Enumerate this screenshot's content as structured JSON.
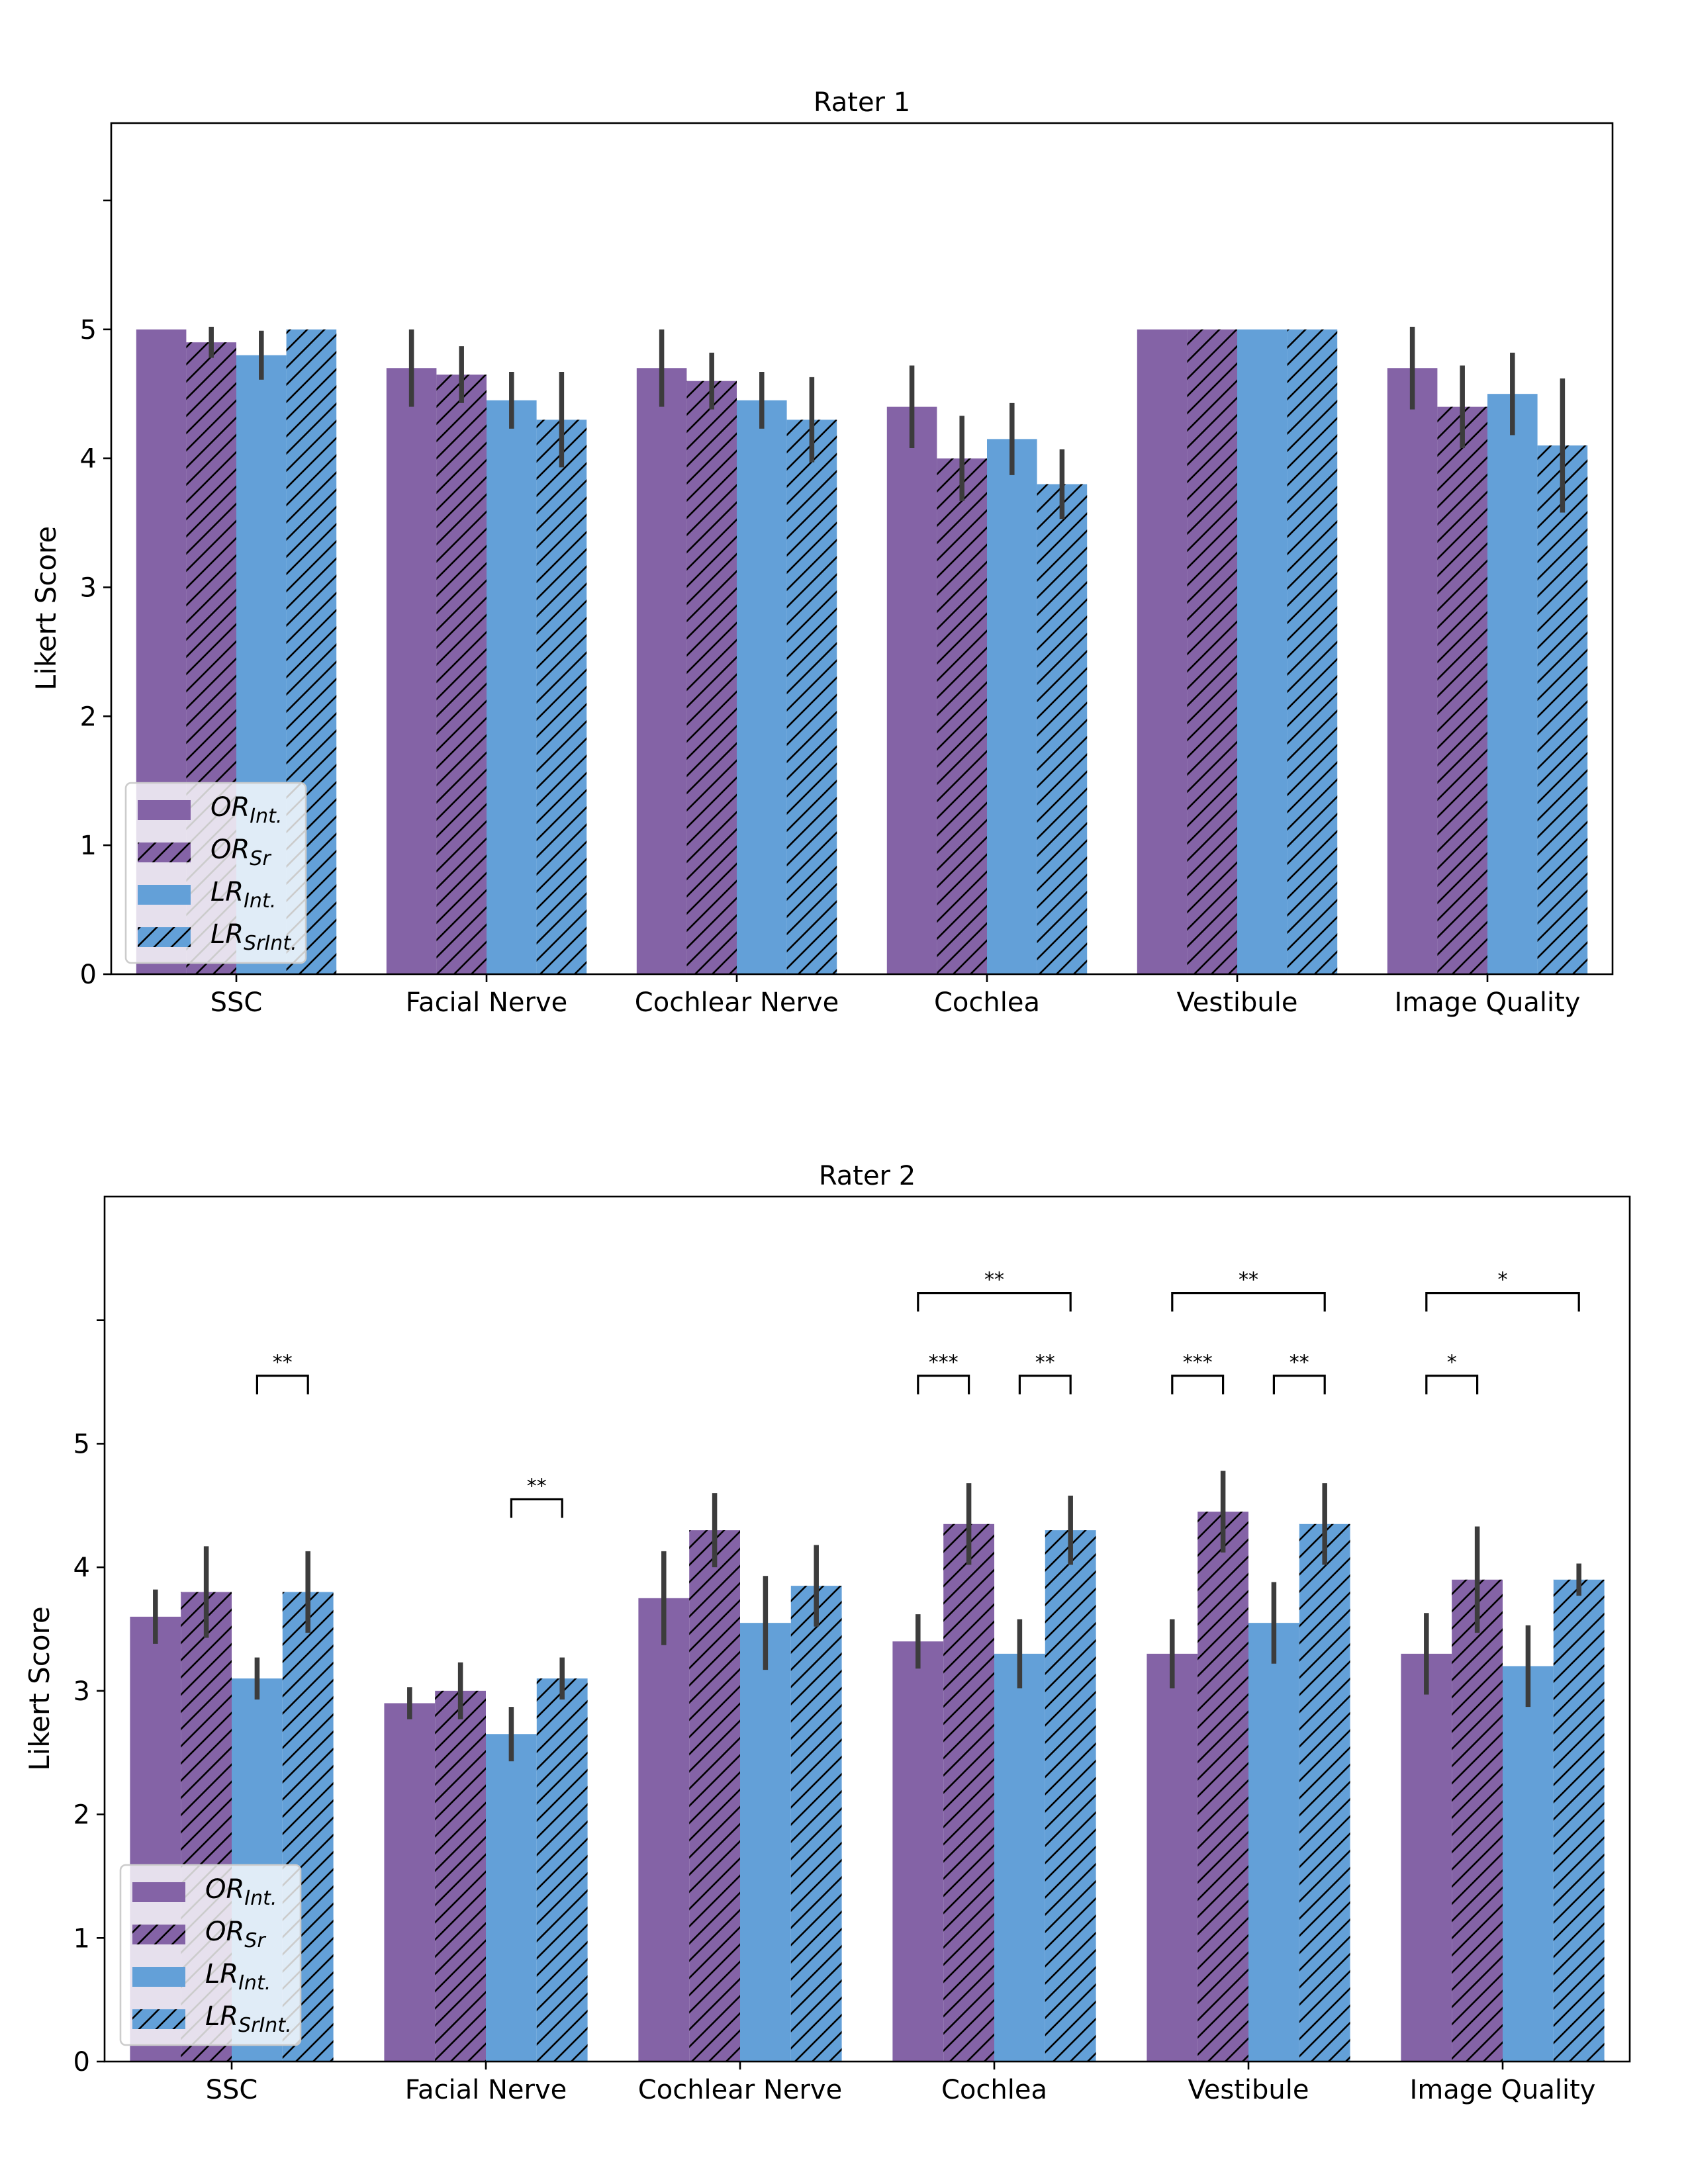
{
  "colors": {
    "purple": "#8463a6",
    "blue": "#63a0d8",
    "error_bar": "#3c3c3c",
    "hatch": "#000000"
  },
  "legend": [
    {
      "main": "OR",
      "sub": "Int.",
      "color": "purple",
      "hatched": false
    },
    {
      "main": "OR",
      "sub": "Sr",
      "color": "purple",
      "hatched": true
    },
    {
      "main": "LR",
      "sub": "Int.",
      "color": "blue",
      "hatched": false
    },
    {
      "main": "LR",
      "sub": "SrInt.",
      "color": "blue",
      "hatched": true
    }
  ],
  "chart_data": [
    {
      "type": "bar",
      "title": "Rater 1",
      "xlabel": "",
      "ylabel": "Likert Score",
      "ylim": [
        0,
        6.6
      ],
      "yticks": [
        0,
        1,
        2,
        3,
        4,
        5
      ],
      "legend_position": "lower-left",
      "categories": [
        "SSC",
        "Facial Nerve",
        "Cochlear Nerve",
        "Cochlea",
        "Vestibule",
        "Image Quality"
      ],
      "series": [
        {
          "name": "OR_Int.",
          "values": [
            5.0,
            4.7,
            4.7,
            4.4,
            5.0,
            4.7
          ],
          "err": [
            0.0,
            0.3,
            0.3,
            0.32,
            0.0,
            0.32
          ]
        },
        {
          "name": "OR_Sr",
          "values": [
            4.9,
            4.65,
            4.6,
            4.0,
            5.0,
            4.4
          ],
          "err": [
            0.12,
            0.22,
            0.22,
            0.33,
            0.0,
            0.32
          ]
        },
        {
          "name": "LR_Int.",
          "values": [
            4.8,
            4.45,
            4.45,
            4.15,
            5.0,
            4.5
          ],
          "err": [
            0.19,
            0.22,
            0.22,
            0.28,
            0.0,
            0.32
          ]
        },
        {
          "name": "LR_SrInt.",
          "values": [
            5.0,
            4.3,
            4.3,
            3.8,
            5.0,
            4.1
          ],
          "err": [
            0.0,
            0.37,
            0.33,
            0.27,
            0.0,
            0.52
          ]
        }
      ],
      "significance": []
    },
    {
      "type": "bar",
      "title": "Rater 2",
      "xlabel": "",
      "ylabel": "Likert Score",
      "ylim": [
        0,
        7.0
      ],
      "yticks": [
        0,
        1,
        2,
        3,
        4,
        5
      ],
      "legend_position": "lower-left",
      "categories": [
        "SSC",
        "Facial Nerve",
        "Cochlear Nerve",
        "Cochlea",
        "Vestibule",
        "Image Quality"
      ],
      "series": [
        {
          "name": "OR_Int.",
          "values": [
            3.6,
            2.9,
            3.75,
            3.4,
            3.3,
            3.3
          ],
          "err": [
            0.22,
            0.13,
            0.38,
            0.22,
            0.28,
            0.33
          ]
        },
        {
          "name": "OR_Sr",
          "values": [
            3.8,
            3.0,
            4.3,
            4.35,
            4.45,
            3.9
          ],
          "err": [
            0.37,
            0.23,
            0.3,
            0.33,
            0.33,
            0.43
          ]
        },
        {
          "name": "LR_Int.",
          "values": [
            3.1,
            2.65,
            3.55,
            3.3,
            3.55,
            3.2
          ],
          "err": [
            0.17,
            0.22,
            0.38,
            0.28,
            0.33,
            0.33
          ]
        },
        {
          "name": "LR_SrInt.",
          "values": [
            3.8,
            3.1,
            3.85,
            4.3,
            4.35,
            3.9
          ],
          "err": [
            0.33,
            0.17,
            0.33,
            0.28,
            0.33,
            0.13
          ]
        }
      ],
      "significance": [
        {
          "category": 0,
          "from": 2,
          "to": 3,
          "level": 5.55,
          "label": "**"
        },
        {
          "category": 1,
          "from": 2,
          "to": 3,
          "level": 4.55,
          "label": "**"
        },
        {
          "category": 3,
          "from": 0,
          "to": 1,
          "level": 5.55,
          "label": "***"
        },
        {
          "category": 3,
          "from": 2,
          "to": 3,
          "level": 5.55,
          "label": "**"
        },
        {
          "category": 3,
          "from": 0,
          "to": 3,
          "level": 6.22,
          "label": "**"
        },
        {
          "category": 4,
          "from": 0,
          "to": 1,
          "level": 5.55,
          "label": "***"
        },
        {
          "category": 4,
          "from": 2,
          "to": 3,
          "level": 5.55,
          "label": "**"
        },
        {
          "category": 4,
          "from": 0,
          "to": 3,
          "level": 6.22,
          "label": "**"
        },
        {
          "category": 5,
          "from": 0,
          "to": 1,
          "level": 5.55,
          "label": "*"
        },
        {
          "category": 5,
          "from": 0,
          "to": 3,
          "level": 6.22,
          "label": "*"
        }
      ]
    }
  ]
}
